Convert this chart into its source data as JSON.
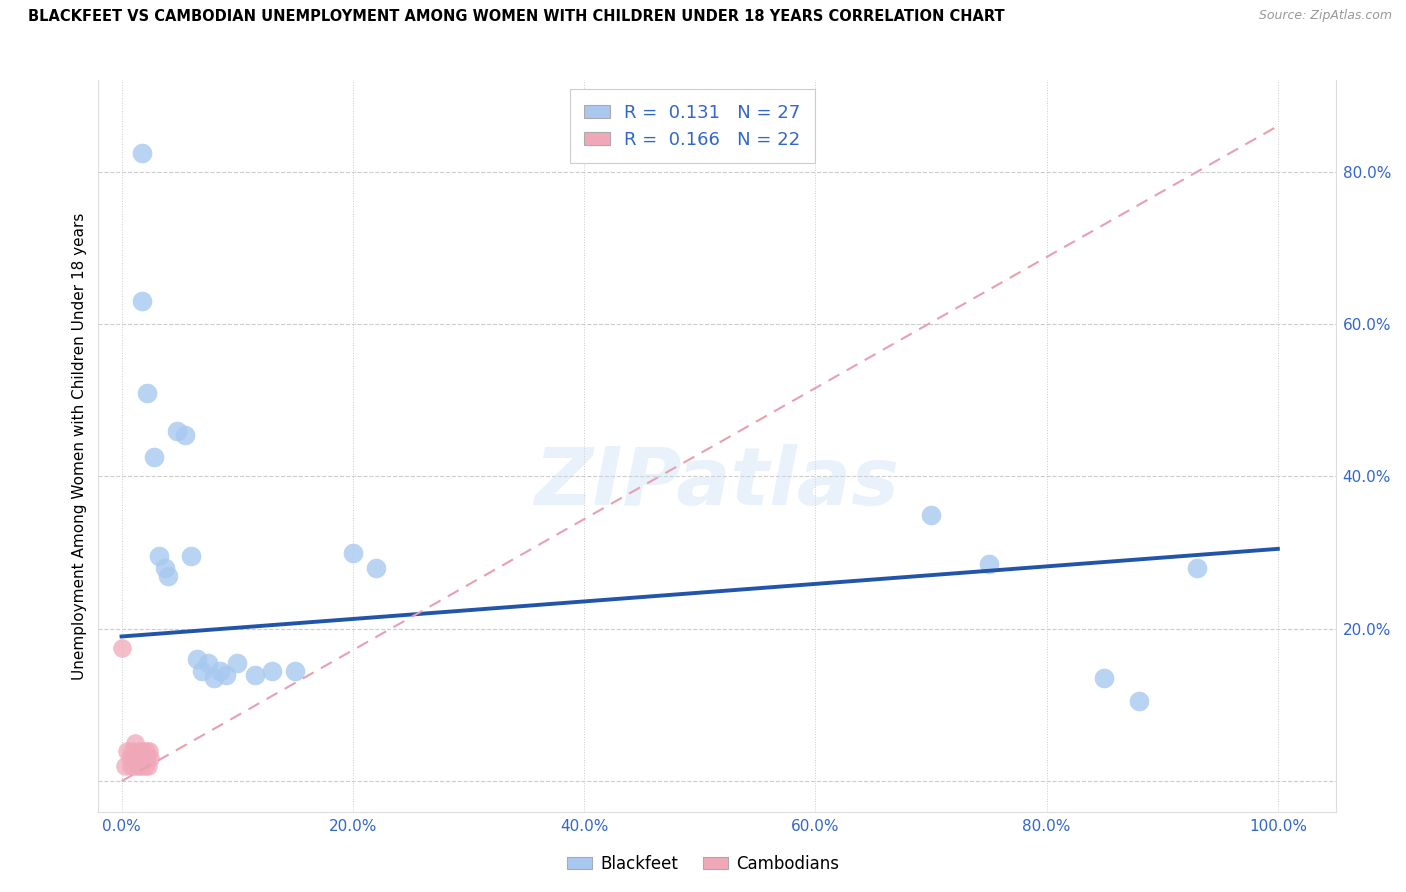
{
  "title": "BLACKFEET VS CAMBODIAN UNEMPLOYMENT AMONG WOMEN WITH CHILDREN UNDER 18 YEARS CORRELATION CHART",
  "source": "Source: ZipAtlas.com",
  "ylabel": "Unemployment Among Women with Children Under 18 years",
  "watermark": "ZIPatlas",
  "blackfeet_R": 0.131,
  "blackfeet_N": 27,
  "cambodian_R": 0.166,
  "cambodian_N": 22,
  "blackfeet_color": "#a8c8f0",
  "cambodian_color": "#f0a8b8",
  "blackfeet_line_color": "#2255aa",
  "cambodian_line_color": "#e8a0b0",
  "grid_color": "#cccccc",
  "blackfeet_x": [
    0.018,
    0.018,
    0.022,
    0.028,
    0.032,
    0.038,
    0.048,
    0.055,
    0.065,
    0.075,
    0.085,
    0.09,
    0.1,
    0.115,
    0.13,
    0.15,
    0.2,
    0.22,
    0.7,
    0.75,
    0.85,
    0.88,
    0.93,
    0.04,
    0.06,
    0.07,
    0.08
  ],
  "blackfeet_y": [
    0.825,
    0.63,
    0.51,
    0.425,
    0.295,
    0.28,
    0.46,
    0.455,
    0.16,
    0.155,
    0.145,
    0.14,
    0.155,
    0.14,
    0.145,
    0.145,
    0.3,
    0.28,
    0.35,
    0.285,
    0.135,
    0.105,
    0.28,
    0.27,
    0.295,
    0.145,
    0.135
  ],
  "cambodian_x": [
    0.0,
    0.003,
    0.005,
    0.007,
    0.008,
    0.009,
    0.01,
    0.011,
    0.012,
    0.013,
    0.014,
    0.015,
    0.016,
    0.017,
    0.018,
    0.019,
    0.02,
    0.021,
    0.022,
    0.023,
    0.024,
    0.025
  ],
  "cambodian_y": [
    0.175,
    0.02,
    0.04,
    0.03,
    0.02,
    0.04,
    0.03,
    0.02,
    0.05,
    0.03,
    0.02,
    0.04,
    0.03,
    0.02,
    0.04,
    0.03,
    0.02,
    0.04,
    0.03,
    0.02,
    0.04,
    0.03
  ],
  "xlim": [
    -0.02,
    1.05
  ],
  "ylim": [
    -0.04,
    0.92
  ],
  "xticks": [
    0.0,
    0.2,
    0.4,
    0.6,
    0.8,
    1.0
  ],
  "xtick_labels": [
    "0.0%",
    "20.0%",
    "40.0%",
    "60.0%",
    "80.0%",
    "100.0%"
  ],
  "hgrid_lines": [
    0.0,
    0.2,
    0.4,
    0.6,
    0.8
  ],
  "right_yticks": [
    0.2,
    0.4,
    0.6,
    0.8
  ],
  "right_ytick_labels": [
    "20.0%",
    "40.0%",
    "60.0%",
    "80.0%"
  ],
  "blackfeet_trend_x0": 0.0,
  "blackfeet_trend_x1": 1.0,
  "blackfeet_trend_y0": 0.19,
  "blackfeet_trend_y1": 0.305,
  "cambodian_trend_x0": 0.0,
  "cambodian_trend_x1": 1.0,
  "cambodian_trend_y0": 0.0,
  "cambodian_trend_y1": 0.86
}
